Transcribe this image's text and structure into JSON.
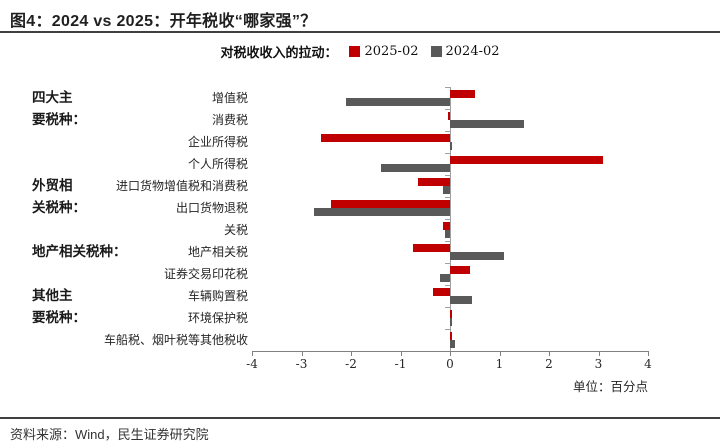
{
  "title": "图4：2024 vs 2025：开年税收“哪家强”？",
  "legend": {
    "caption": "对税收收入的拉动："
  },
  "footer": {
    "source": "资料来源：Wind，民生证券研究院"
  },
  "chart_data": {
    "type": "bar",
    "orientation": "horizontal",
    "title": "对税收收入的拉动",
    "categories": [
      "增值税",
      "消费税",
      "企业所得税",
      "个人所得税",
      "进口货物增值税和消费税",
      "出口货物退税",
      "关税",
      "地产相关税",
      "证券交易印花税",
      "车辆购置税",
      "环境保护税",
      "车船税、烟叶税等其他税收"
    ],
    "series": [
      {
        "name": "2025-02",
        "color": "#c00000",
        "values": [
          0.5,
          -0.05,
          -2.6,
          3.1,
          -0.65,
          -2.4,
          -0.15,
          -0.75,
          0.4,
          -0.35,
          0.05,
          0.03
        ]
      },
      {
        "name": "2024-02",
        "color": "#595959",
        "values": [
          -2.1,
          1.5,
          0.05,
          -1.4,
          -0.15,
          -2.75,
          -0.1,
          1.1,
          -0.2,
          0.45,
          0.02,
          0.1
        ]
      }
    ],
    "xlim": [
      -4,
      4
    ],
    "xticks": [
      -4,
      -3,
      -2,
      -1,
      0,
      1,
      2,
      3,
      4
    ],
    "unit_label": "单位：百分点",
    "grid": false,
    "legend_position": "top",
    "groups": [
      {
        "lines": [
          "四大主",
          "要税种："
        ],
        "start_row": 0
      },
      {
        "lines": [
          "外贸相",
          "关税种："
        ],
        "start_row": 4
      },
      {
        "lines": [
          "地产相关税种："
        ],
        "start_row": 7
      },
      {
        "lines": [
          "其他主",
          "要税种："
        ],
        "start_row": 9
      }
    ]
  }
}
